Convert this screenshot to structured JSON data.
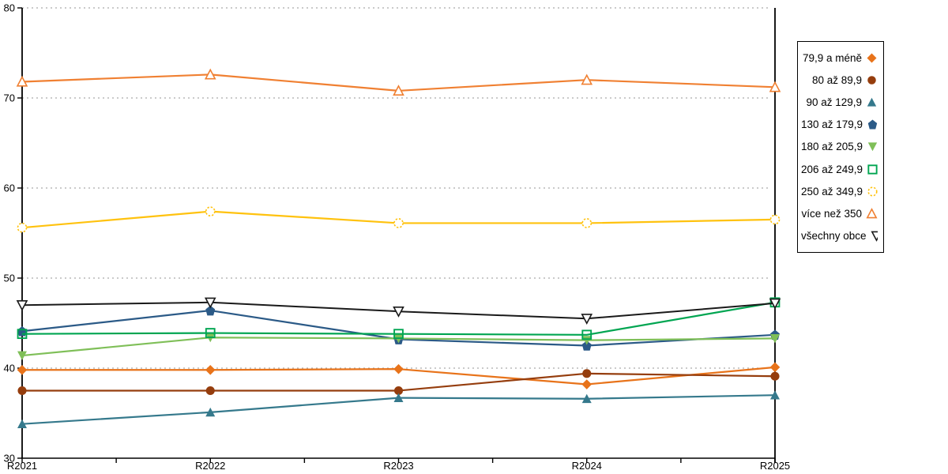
{
  "chart_data": {
    "type": "line",
    "title": "",
    "xlabel": "",
    "ylabel": "",
    "categories": [
      "R2021",
      "R2022",
      "R2023",
      "R2024",
      "R2025"
    ],
    "ylim": [
      30,
      80
    ],
    "yticks": [
      30,
      40,
      50,
      60,
      70,
      80
    ],
    "grid": "horizontal-dotted",
    "legend_position": "right-outside",
    "axis_color": "#000000",
    "gridline_color": "#aaaaaa",
    "series": [
      {
        "name": "79,9 a méně",
        "color": "#E8731A",
        "marker": "diamond",
        "open": false,
        "dashed": false,
        "values": [
          39.8,
          39.8,
          39.9,
          38.2,
          40.1
        ]
      },
      {
        "name": "80 až 89,9",
        "color": "#953D0D",
        "marker": "circle",
        "open": false,
        "dashed": false,
        "values": [
          37.5,
          37.5,
          37.5,
          39.4,
          39.1
        ]
      },
      {
        "name": "90 až 129,9",
        "color": "#35798C",
        "marker": "triangle-up",
        "open": false,
        "dashed": false,
        "values": [
          33.8,
          35.1,
          36.7,
          36.6,
          37.0
        ]
      },
      {
        "name": "130 až 179,9",
        "color": "#2B5A87",
        "marker": "pentagon",
        "open": false,
        "dashed": false,
        "values": [
          44.1,
          46.4,
          43.2,
          42.5,
          43.7
        ]
      },
      {
        "name": "180 až 205,9",
        "color": "#7FBF58",
        "marker": "triangle-down",
        "open": false,
        "dashed": false,
        "values": [
          41.4,
          43.4,
          43.3,
          43.1,
          43.3
        ]
      },
      {
        "name": "206 až 249,9",
        "color": "#00A551",
        "marker": "square",
        "open": true,
        "dashed": false,
        "values": [
          43.8,
          43.9,
          43.8,
          43.7,
          47.3
        ]
      },
      {
        "name": "250 až 349,9",
        "color": "#FFC20E",
        "marker": "circle",
        "open": true,
        "dashed": true,
        "values": [
          55.6,
          57.4,
          56.1,
          56.1,
          56.5
        ]
      },
      {
        "name": "více než 350",
        "color": "#F08032",
        "marker": "triangle-up",
        "open": true,
        "dashed": false,
        "values": [
          71.8,
          72.6,
          70.8,
          72.0,
          71.2
        ]
      },
      {
        "name": "všechny obce",
        "color": "#1A1A1A",
        "marker": "triangle-down",
        "open": true,
        "dashed": false,
        "values": [
          47.0,
          47.3,
          46.3,
          45.5,
          47.2
        ]
      }
    ]
  }
}
